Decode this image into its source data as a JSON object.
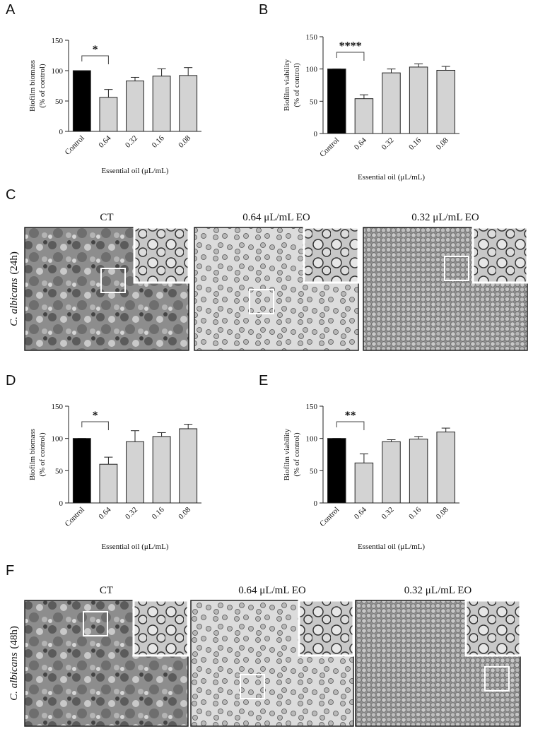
{
  "chart_data": [
    {
      "type": "bar",
      "panel": "A",
      "ylabel": [
        "Biofilm biomass",
        "(% of control)"
      ],
      "xlabel": "Essential oil (μL/mL)",
      "categories": [
        "Control",
        "0.64",
        "0.32",
        "0.16",
        "0.08"
      ],
      "values": [
        100,
        56,
        83,
        91,
        92
      ],
      "errors": [
        0,
        13,
        6,
        12,
        13
      ],
      "colors": [
        "#000000",
        "#d3d3d3",
        "#d3d3d3",
        "#d3d3d3",
        "#d3d3d3"
      ],
      "ylim": [
        0,
        150
      ],
      "yticks": [
        0,
        50,
        100,
        150
      ],
      "significance": "*"
    },
    {
      "type": "bar",
      "panel": "B",
      "ylabel": [
        "Biofilm viability",
        "(% of control)"
      ],
      "xlabel": "Essential oil (μL/mL)",
      "categories": [
        "Control",
        "0.64",
        "0.32",
        "0.16",
        "0.08"
      ],
      "values": [
        100,
        54,
        94,
        103,
        98
      ],
      "errors": [
        0,
        6,
        6,
        5,
        6
      ],
      "colors": [
        "#000000",
        "#d3d3d3",
        "#d3d3d3",
        "#d3d3d3",
        "#d3d3d3"
      ],
      "ylim": [
        0,
        150
      ],
      "yticks": [
        0,
        50,
        100,
        150
      ],
      "significance": "****"
    },
    {
      "type": "bar",
      "panel": "D",
      "ylabel": [
        "Biofilm biomass",
        "(% of control)"
      ],
      "xlabel": "Essential oil (μL/mL)",
      "categories": [
        "Control",
        "0.64",
        "0.32",
        "0.16",
        "0.08"
      ],
      "values": [
        100,
        60,
        95,
        103,
        115
      ],
      "errors": [
        0,
        11,
        17,
        6,
        7
      ],
      "colors": [
        "#000000",
        "#d3d3d3",
        "#d3d3d3",
        "#d3d3d3",
        "#d3d3d3"
      ],
      "ylim": [
        0,
        150
      ],
      "yticks": [
        0,
        50,
        100,
        150
      ],
      "significance": "*"
    },
    {
      "type": "bar",
      "panel": "E",
      "ylabel": [
        "Biofilm viability",
        "(% of control)"
      ],
      "xlabel": "Essential oil (μL/mL)",
      "categories": [
        "Control",
        "0.64",
        "0.32",
        "0.16",
        "0.08"
      ],
      "values": [
        100,
        62,
        95,
        99,
        110
      ],
      "errors": [
        0,
        14,
        3,
        4,
        6
      ],
      "colors": [
        "#000000",
        "#d3d3d3",
        "#d3d3d3",
        "#d3d3d3",
        "#d3d3d3"
      ],
      "ylim": [
        0,
        150
      ],
      "yticks": [
        0,
        50,
        100,
        150
      ],
      "significance": "**"
    }
  ],
  "micrographs": [
    {
      "panel": "C",
      "row_label": {
        "species": "C. albicans",
        "time": "(24h)"
      },
      "columns": [
        "CT",
        "0.64 μL/mL EO",
        "0.32 μL/mL EO"
      ]
    },
    {
      "panel": "F",
      "row_label": {
        "species": "C. albicans",
        "time": "(48h)"
      },
      "columns": [
        "CT",
        "0.64 μL/mL EO",
        "0.32 μL/mL EO"
      ]
    }
  ]
}
